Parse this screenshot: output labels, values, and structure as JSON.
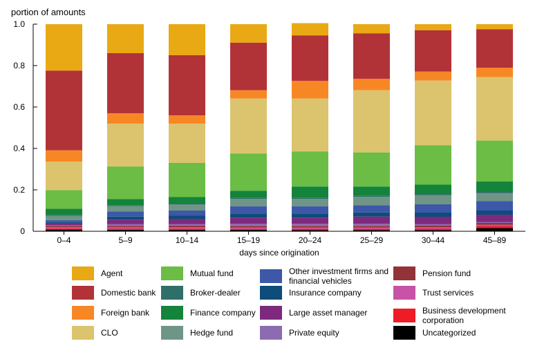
{
  "chart_data": {
    "type": "bar",
    "stacked": true,
    "ylabel": "portion of amounts",
    "xlabel": "days since origination",
    "ylim": [
      0,
      1
    ],
    "yticks": [
      "0",
      "0.2",
      "0.4",
      "0.6",
      "0.8",
      "1.0"
    ],
    "ytick_values": [
      0,
      0.2,
      0.4,
      0.6,
      0.8,
      1.0
    ],
    "categories": [
      "0–4",
      "5–9",
      "10–14",
      "15–19",
      "20–24",
      "25–29",
      "30–44",
      "45–89"
    ],
    "series": [
      {
        "name": "Uncategorized",
        "color": "#000000",
        "values": [
          0.008,
          0.007,
          0.007,
          0.007,
          0.006,
          0.006,
          0.006,
          0.015
        ]
      },
      {
        "name": "Business development corporation",
        "color": "#ee1c25",
        "values": [
          0.006,
          0.006,
          0.006,
          0.005,
          0.006,
          0.006,
          0.007,
          0.01
        ]
      },
      {
        "name": "Trust services",
        "color": "#c653a6",
        "values": [
          0.006,
          0.006,
          0.006,
          0.006,
          0.006,
          0.006,
          0.007,
          0.006
        ]
      },
      {
        "name": "Pension fund",
        "color": "#913339",
        "values": [
          0.005,
          0.007,
          0.008,
          0.008,
          0.008,
          0.008,
          0.008,
          0.009
        ]
      },
      {
        "name": "Private equity",
        "color": "#8c6bb1",
        "values": [
          0.005,
          0.008,
          0.008,
          0.01,
          0.01,
          0.01,
          0.007,
          0.005
        ]
      },
      {
        "name": "Large asset manager",
        "color": "#7d2a7e",
        "values": [
          0.008,
          0.022,
          0.025,
          0.03,
          0.03,
          0.035,
          0.035,
          0.035
        ]
      },
      {
        "name": "Insurance company",
        "color": "#0e4c7a",
        "values": [
          0.006,
          0.015,
          0.015,
          0.02,
          0.02,
          0.02,
          0.02,
          0.02
        ]
      },
      {
        "name": "Other investment firms and financial vehicles",
        "color": "#3d58a8",
        "values": [
          0.01,
          0.025,
          0.025,
          0.035,
          0.035,
          0.035,
          0.04,
          0.045
        ]
      },
      {
        "name": "Hedge fund",
        "color": "#6f9586",
        "values": [
          0.02,
          0.025,
          0.03,
          0.035,
          0.035,
          0.04,
          0.045,
          0.04
        ]
      },
      {
        "name": "Broker-dealer",
        "color": "#2e6f6a",
        "values": [
          0.005,
          0.005,
          0.005,
          0.005,
          0.005,
          0.005,
          0.005,
          0.005
        ]
      },
      {
        "name": "Finance company",
        "color": "#14833b",
        "values": [
          0.03,
          0.03,
          0.03,
          0.035,
          0.055,
          0.045,
          0.045,
          0.05
        ]
      },
      {
        "name": "Mutual fund",
        "color": "#6bbd45",
        "values": [
          0.09,
          0.157,
          0.165,
          0.18,
          0.17,
          0.165,
          0.19,
          0.198
        ]
      },
      {
        "name": "CLO",
        "color": "#dcc46e",
        "values": [
          0.137,
          0.207,
          0.19,
          0.265,
          0.255,
          0.3,
          0.313,
          0.307
        ]
      },
      {
        "name": "Foreign bank",
        "color": "#f78725",
        "values": [
          0.055,
          0.05,
          0.04,
          0.04,
          0.085,
          0.055,
          0.043,
          0.045
        ]
      },
      {
        "name": "Domestic bank",
        "color": "#b13338",
        "values": [
          0.385,
          0.29,
          0.29,
          0.23,
          0.22,
          0.22,
          0.2,
          0.185
        ]
      },
      {
        "name": "Agent",
        "color": "#e9a914",
        "values": [
          0.224,
          0.14,
          0.15,
          0.089,
          0.059,
          0.044,
          0.029,
          0.025
        ]
      }
    ],
    "legend": {
      "placement": "bottom",
      "columns": [
        [
          "Agent",
          "Domestic bank",
          "Foreign bank",
          "CLO"
        ],
        [
          "Mutual fund",
          "Broker-dealer",
          "Finance company",
          "Hedge fund"
        ],
        [
          "Other investment firms and financial vehicles",
          "Insurance company",
          "Large asset manager",
          "Private equity"
        ],
        [
          "Pension fund",
          "Trust services",
          "Business development corporation",
          "Uncategorized"
        ]
      ]
    }
  }
}
